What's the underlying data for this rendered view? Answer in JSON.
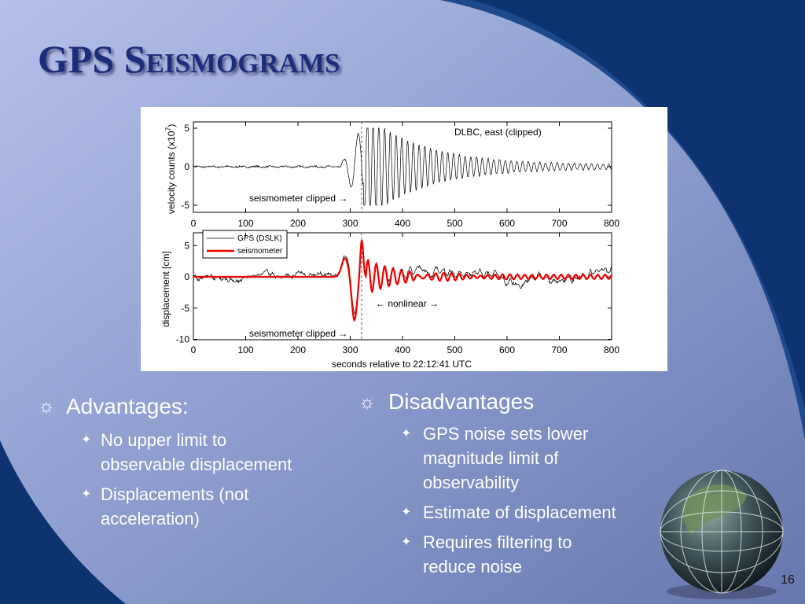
{
  "title": "GPS Seismograms",
  "figure": {
    "top_panel": {
      "y_label": "velocity counts (x10",
      "y_label_exponent": "7",
      "y_label_close": ")",
      "y_ticks": [
        5,
        0,
        -5
      ],
      "x_ticks": [
        0,
        100,
        200,
        300,
        400,
        500,
        600,
        700,
        800
      ],
      "annotation": "DLBC, east (clipped)",
      "clip_note": "seismometer clipped →"
    },
    "bottom_panel": {
      "y_label": "displacement [cm]",
      "y_ticks": [
        5,
        0,
        -5,
        -10
      ],
      "x_ticks": [
        0,
        100,
        200,
        300,
        400,
        500,
        600,
        700,
        800
      ],
      "legend": [
        "GPS (DSLK)",
        "seismometer"
      ],
      "annotation": "← nonlinear →",
      "clip_note": "seismometer clipped →",
      "x_label": "seconds relative to 22:12:41 UTC"
    }
  },
  "left_column": {
    "heading": "Advantages:",
    "items": [
      [
        "No upper limit to",
        "observable displacement"
      ],
      [
        "Displacements (not",
        "acceleration)"
      ]
    ]
  },
  "right_column": {
    "heading": "Disadvantages",
    "items": [
      [
        "GPS noise sets lower",
        "magnitude limit of",
        "observability"
      ],
      [
        "Estimate of displacement"
      ],
      [
        "Requires filtering to",
        "reduce noise"
      ]
    ]
  },
  "page_number": "16"
}
